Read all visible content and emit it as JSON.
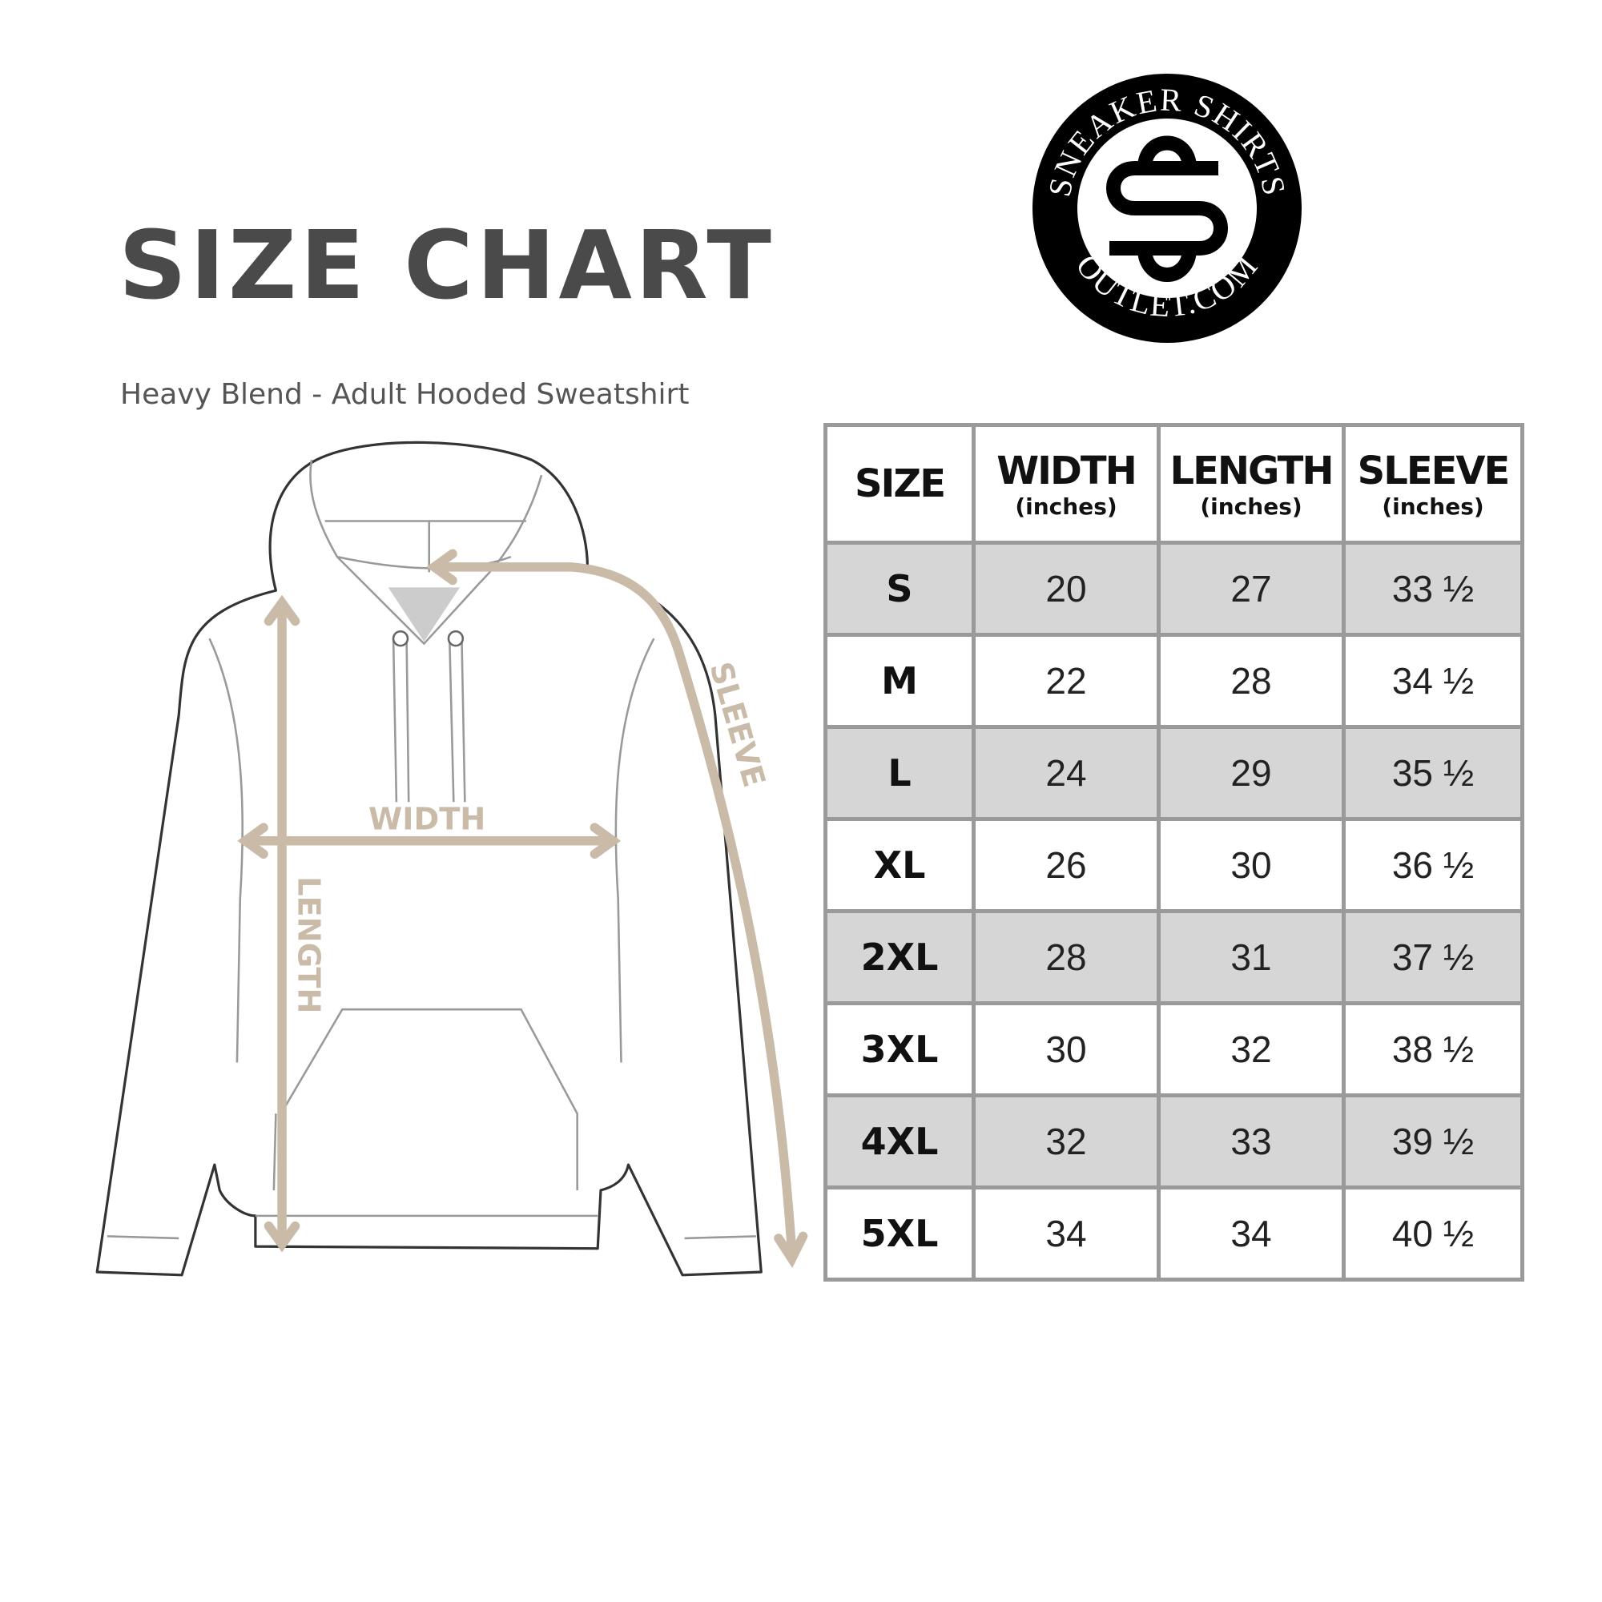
{
  "title": "SIZE CHART",
  "subtitle": "Heavy Blend - Adult Hooded Sweatshirt",
  "logo": {
    "top_text": "SNEAKER SHIRTS",
    "bottom_text": "OUTLET.COM",
    "monogram": "SS"
  },
  "diagram": {
    "width_label": "WIDTH",
    "length_label": "LENGTH",
    "sleeve_label": "SLEEVE",
    "arrow_color": "#c9bba8"
  },
  "table": {
    "headers": [
      {
        "label": "SIZE",
        "unit": ""
      },
      {
        "label": "WIDTH",
        "unit": "(inches)"
      },
      {
        "label": "LENGTH",
        "unit": "(inches)"
      },
      {
        "label": "SLEEVE",
        "unit": "(inches)"
      }
    ],
    "rows": [
      [
        "S",
        "20",
        "27",
        "33 ½"
      ],
      [
        "M",
        "22",
        "28",
        "34 ½"
      ],
      [
        "L",
        "24",
        "29",
        "35 ½"
      ],
      [
        "XL",
        "26",
        "30",
        "36 ½"
      ],
      [
        "2XL",
        "28",
        "31",
        "37 ½"
      ],
      [
        "3XL",
        "30",
        "32",
        "38 ½"
      ],
      [
        "4XL",
        "32",
        "33",
        "39 ½"
      ],
      [
        "5XL",
        "34",
        "34",
        "40 ½"
      ]
    ],
    "shade_color": "#d6d6d6",
    "border_color": "#9a9a9a"
  }
}
